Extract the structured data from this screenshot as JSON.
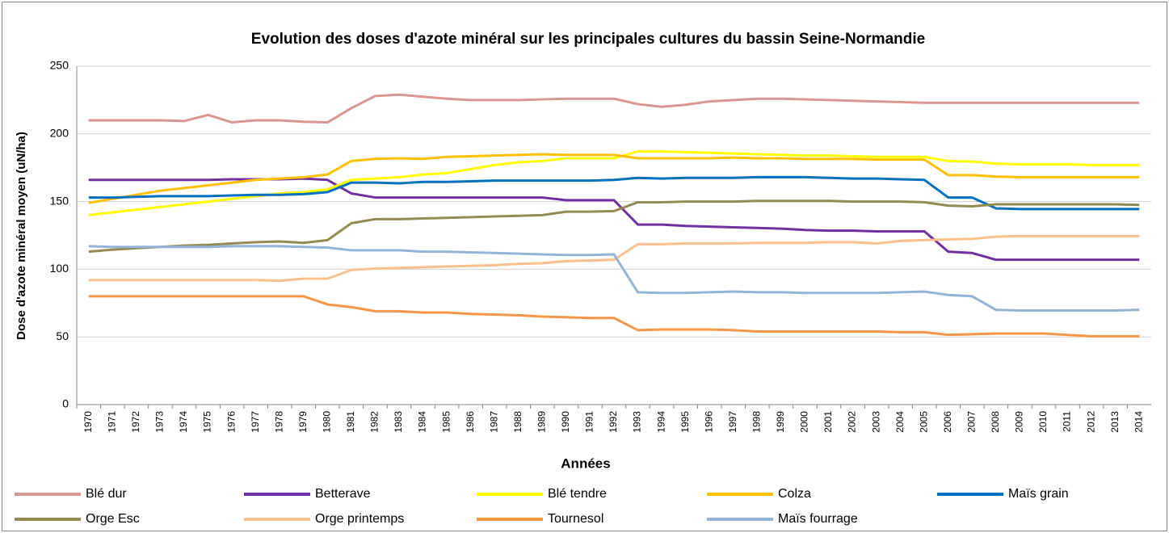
{
  "chart_data": {
    "type": "line",
    "title": "Evolution des doses d'azote minéral sur les principales cultures du bassin Seine-Normandie",
    "x_label": "Années",
    "y_label": "Dose d'azote minéral moyen (uN/ha)",
    "categories": [
      "1970",
      "1971",
      "1972",
      "1973",
      "1974",
      "1975",
      "1976",
      "1977",
      "1978",
      "1979",
      "1980",
      "1981",
      "1982",
      "1983",
      "1984",
      "1985",
      "1986",
      "1987",
      "1988",
      "1989",
      "1990",
      "1991",
      "1992",
      "1993",
      "1994",
      "1995",
      "1996",
      "1997",
      "1998",
      "1999",
      "2000",
      "2001",
      "2002",
      "2003",
      "2004",
      "2005",
      "2006",
      "2007",
      "2008",
      "2009",
      "2010",
      "2011",
      "2012",
      "2013",
      "2014"
    ],
    "ylim": [
      0,
      250
    ],
    "yticks": [
      0,
      50,
      100,
      150,
      200,
      250
    ],
    "grid": true,
    "legend": "bottom",
    "series": [
      {
        "name": "Blé dur",
        "color": "#d99694",
        "values": [
          210,
          210,
          210,
          210,
          209.5,
          214,
          208.5,
          210,
          210,
          209,
          208.5,
          219,
          228,
          229,
          227.5,
          226,
          225,
          225,
          225,
          225.5,
          226,
          226,
          226,
          222,
          220,
          221.5,
          224,
          225,
          226,
          226,
          225.5,
          225,
          224.5,
          224,
          223.5,
          223,
          223,
          223,
          223,
          223,
          223,
          223,
          223,
          223,
          223
        ]
      },
      {
        "name": "Betterave",
        "color": "#7030a0",
        "values": [
          166,
          166,
          166,
          166,
          166,
          166,
          166.5,
          166.5,
          166.5,
          167,
          166,
          156,
          153,
          153,
          153,
          153,
          153,
          153,
          153,
          153,
          151,
          151,
          151,
          133,
          133,
          132,
          131.5,
          131,
          130.5,
          130,
          129,
          128.5,
          128.5,
          128,
          128,
          128,
          113,
          112,
          107,
          107,
          107,
          107,
          107,
          107,
          107
        ]
      },
      {
        "name": "Blé tendre",
        "color": "#ffff00",
        "values": [
          140,
          142,
          144,
          146,
          148,
          150,
          152,
          154,
          156,
          157,
          159,
          166,
          167,
          168,
          170,
          171,
          174,
          177,
          179,
          180,
          182,
          182,
          182,
          187,
          187,
          186.5,
          186,
          185.5,
          185,
          184.5,
          184,
          184,
          183.5,
          183,
          183,
          183,
          180,
          179.5,
          178,
          177.5,
          177.5,
          177.5,
          177,
          177,
          177
        ]
      },
      {
        "name": "Colza",
        "color": "#ffc000",
        "values": [
          149,
          152,
          155,
          158,
          160,
          162,
          164,
          166,
          167,
          168,
          170,
          180,
          181.5,
          182,
          181.5,
          183,
          183.5,
          184,
          184.5,
          185,
          184.5,
          184.5,
          184.5,
          182,
          182,
          182,
          182,
          182.5,
          182,
          182,
          181.5,
          181.5,
          181.5,
          181,
          181,
          181,
          169.5,
          169.5,
          168.5,
          168,
          168,
          168,
          168,
          168,
          168
        ]
      },
      {
        "name": "Maïs grain",
        "color": "#0070c0",
        "values": [
          153,
          153,
          153.5,
          154,
          154,
          154,
          154.5,
          155,
          155,
          155.5,
          157,
          164,
          164,
          163.5,
          164.5,
          164.5,
          165,
          165.5,
          165.5,
          165.5,
          165.5,
          165.5,
          166,
          167.5,
          167,
          167.5,
          167.5,
          167.5,
          168,
          168,
          168,
          167.5,
          167,
          167,
          166.5,
          166,
          153,
          153,
          145,
          144.5,
          144.5,
          144.5,
          144.5,
          144.5,
          144.5
        ]
      },
      {
        "name": "Orge Esc",
        "color": "#948a54",
        "values": [
          113,
          114.5,
          115.5,
          116.5,
          117.5,
          118,
          119,
          120,
          120.5,
          119.5,
          121.5,
          134,
          137,
          137,
          137.5,
          138,
          138.5,
          139,
          139.5,
          140,
          142.5,
          142.5,
          143,
          149.5,
          149.5,
          150,
          150,
          150,
          150.5,
          150.5,
          150.5,
          150.5,
          150,
          150,
          150,
          149.5,
          147,
          146.5,
          148,
          148,
          148,
          148,
          148,
          148,
          147.5
        ]
      },
      {
        "name": "Orge printemps",
        "color": "#fac090",
        "values": [
          92,
          92,
          92,
          92,
          92,
          92,
          92,
          92,
          91.5,
          93,
          93,
          99.5,
          100.5,
          101,
          101.5,
          102,
          102.5,
          103,
          104,
          104.5,
          106,
          106.5,
          107,
          118.5,
          118.5,
          119,
          119,
          119,
          119.5,
          119.5,
          119.5,
          120,
          120,
          119,
          121,
          121.5,
          122,
          122.5,
          124,
          124.5,
          124.5,
          124.5,
          124.5,
          124.5,
          124.5
        ]
      },
      {
        "name": "Tournesol",
        "color": "#f79646",
        "values": [
          80,
          80,
          80,
          80,
          80,
          80,
          80,
          80,
          80,
          80,
          74,
          72,
          69,
          69,
          68,
          68,
          67,
          66.5,
          66,
          65,
          64.5,
          64,
          64,
          55,
          55.5,
          55.5,
          55.5,
          55,
          54,
          54,
          54,
          54,
          54,
          54,
          53.5,
          53.5,
          51.5,
          52,
          52.5,
          52.5,
          52.5,
          51.5,
          50.5,
          50.5,
          50.5
        ]
      },
      {
        "name": "Maïs fourrage",
        "color": "#95b3d7",
        "values": [
          117,
          116.5,
          116.5,
          116.5,
          116.5,
          116.5,
          117,
          117,
          117,
          116.5,
          116,
          114,
          114,
          114,
          113,
          113,
          112.5,
          112,
          111.5,
          111,
          110.5,
          110.5,
          111,
          83,
          82.5,
          82.5,
          83,
          83.5,
          83,
          83,
          82.5,
          82.5,
          82.5,
          82.5,
          83,
          83.5,
          81,
          80,
          70,
          69.5,
          69.5,
          69.5,
          69.5,
          69.5,
          70
        ]
      }
    ]
  }
}
